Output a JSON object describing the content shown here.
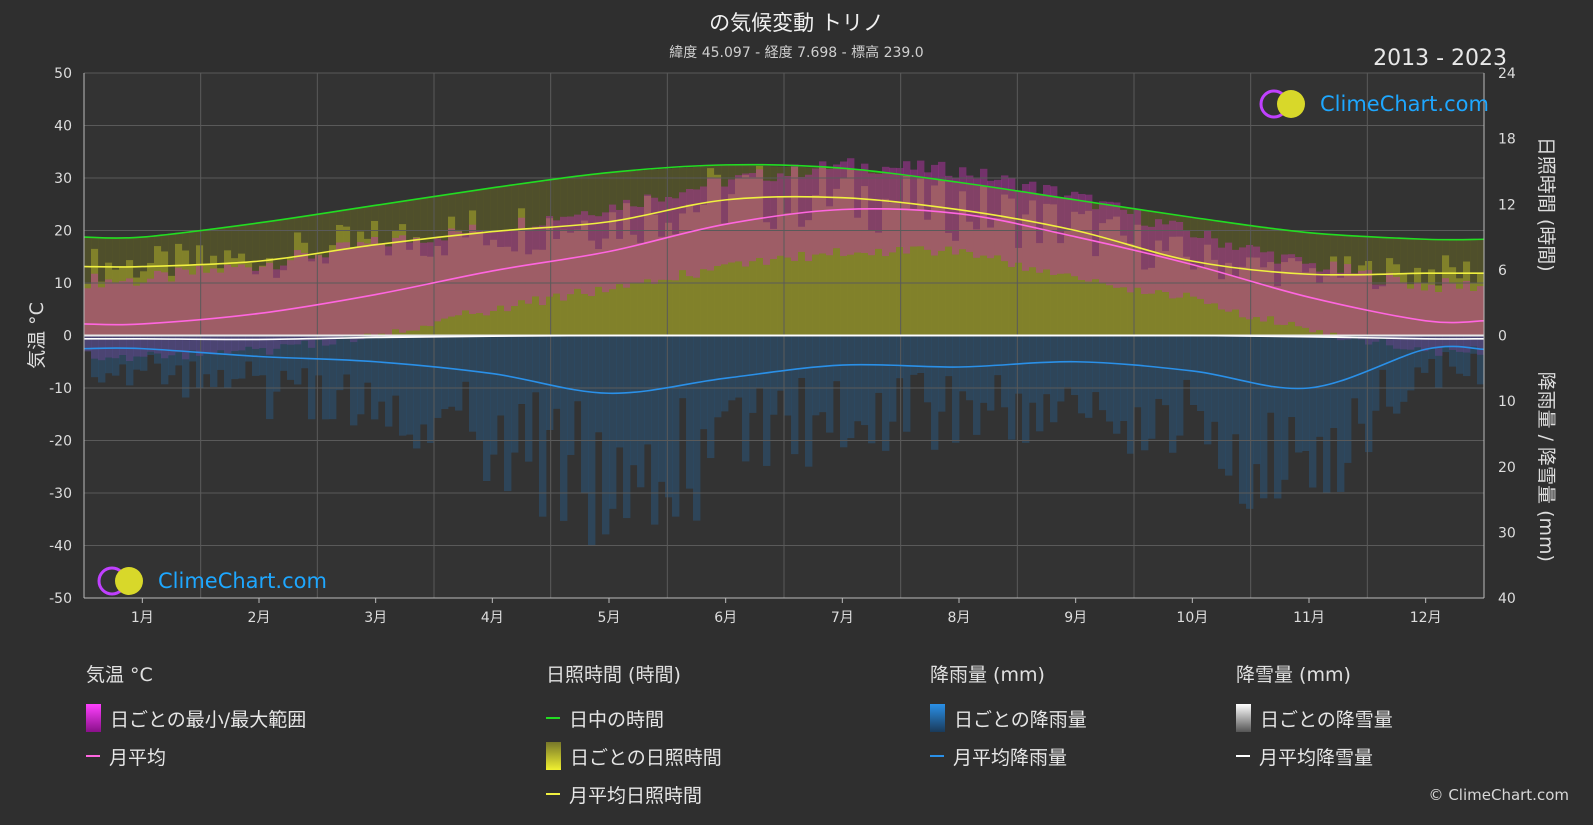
{
  "header": {
    "title": "の気候変動 トリノ",
    "subtitle": "緯度 45.097 - 経度 7.698 - 標高 239.0",
    "years": "2013 - 2023"
  },
  "logo": {
    "text": "ClimeChart.com"
  },
  "copyright": "© ClimeChart.com",
  "colors": {
    "background": "#2f2f2f",
    "temp_range": "#d020d0",
    "temp_avg": "#ff66e0",
    "daylight": "#22dd22",
    "sunshine": "#c8c820",
    "sunshine_avg": "#f0f040",
    "rain": "#2a80c8",
    "rain_avg": "#2a90e8",
    "snow_avg": "#ffffff"
  },
  "legend": [
    {
      "heading": "気温 °C",
      "items": [
        {
          "label": "日ごとの最小/最大範囲",
          "icon": "range-box",
          "color": "#d020d0"
        },
        {
          "label": "月平均",
          "icon": "line",
          "color": "#ff66e0"
        }
      ]
    },
    {
      "heading": "日照時間 (時間)",
      "items": [
        {
          "label": "日中の時間",
          "icon": "line",
          "color": "#22dd22"
        },
        {
          "label": "日ごとの日照時間",
          "icon": "range-box",
          "color": "#c8c820"
        },
        {
          "label": "月平均日照時間",
          "icon": "line",
          "color": "#f0f040"
        }
      ]
    },
    {
      "heading": "降雨量 (mm)",
      "items": [
        {
          "label": "日ごとの降雨量",
          "icon": "range-box",
          "color": "#2a80c8"
        },
        {
          "label": "月平均降雨量",
          "icon": "line",
          "color": "#2a90e8"
        }
      ]
    },
    {
      "heading": "降雪量 (mm)",
      "items": [
        {
          "label": "日ごとの降雪量",
          "icon": "range-box",
          "color": "#dddddd"
        },
        {
          "label": "月平均降雪量",
          "icon": "line",
          "color": "#ffffff"
        }
      ]
    }
  ],
  "chart_data": {
    "type": "line",
    "categories": [
      "1月",
      "2月",
      "3月",
      "4月",
      "5月",
      "6月",
      "7月",
      "8月",
      "9月",
      "10月",
      "11月",
      "12月"
    ],
    "ylabel_left": "気温 °C",
    "ylabel_right_top": "日照時間 (時間)",
    "ylabel_right_bottom": "降雨量 / 降雪量 (mm)",
    "ylim_left": [
      -50,
      50
    ],
    "yticks_left": [
      50,
      40,
      30,
      20,
      10,
      0,
      -10,
      -20,
      -30,
      -40,
      -50
    ],
    "yticks_right_sun": [
      24,
      18,
      12,
      6,
      0
    ],
    "yticks_right_rain": [
      10,
      20,
      30,
      40
    ],
    "grid": true,
    "series": [
      {
        "name": "日中の時間",
        "axis": "sunshine_hours",
        "values": [
          9.0,
          10.3,
          11.9,
          13.5,
          14.9,
          15.6,
          15.3,
          14.0,
          12.4,
          10.8,
          9.4,
          8.8
        ]
      },
      {
        "name": "月平均日照時間",
        "axis": "sunshine_hours",
        "values": [
          6.3,
          6.8,
          8.3,
          9.5,
          10.4,
          12.4,
          12.6,
          11.5,
          9.6,
          6.8,
          5.6,
          5.7
        ]
      },
      {
        "name": "月平均",
        "axis": "temperature_c",
        "values": [
          2.2,
          4.2,
          7.8,
          12.3,
          16.0,
          21.2,
          24.0,
          23.2,
          18.8,
          13.5,
          7.3,
          2.8
        ]
      },
      {
        "name": "月平均降雨量",
        "axis": "precipitation_mm",
        "values": [
          2.0,
          3.2,
          4.0,
          5.8,
          8.8,
          6.5,
          4.5,
          4.8,
          4.0,
          5.4,
          8.0,
          2.1
        ]
      },
      {
        "name": "月平均降雪量",
        "axis": "precipitation_mm",
        "values": [
          0.5,
          0.6,
          0.3,
          0.1,
          0.0,
          0.0,
          0.0,
          0.0,
          0.0,
          0.0,
          0.2,
          0.5
        ]
      },
      {
        "name": "日ごとの最小/最大範囲",
        "axis": "temperature_c",
        "min": [
          -3,
          -2,
          1,
          6,
          10,
          14,
          17,
          17,
          12,
          8,
          2,
          -2
        ],
        "max": [
          9,
          12,
          16,
          19,
          23,
          28,
          31,
          30,
          25,
          18,
          12,
          8
        ]
      }
    ]
  }
}
